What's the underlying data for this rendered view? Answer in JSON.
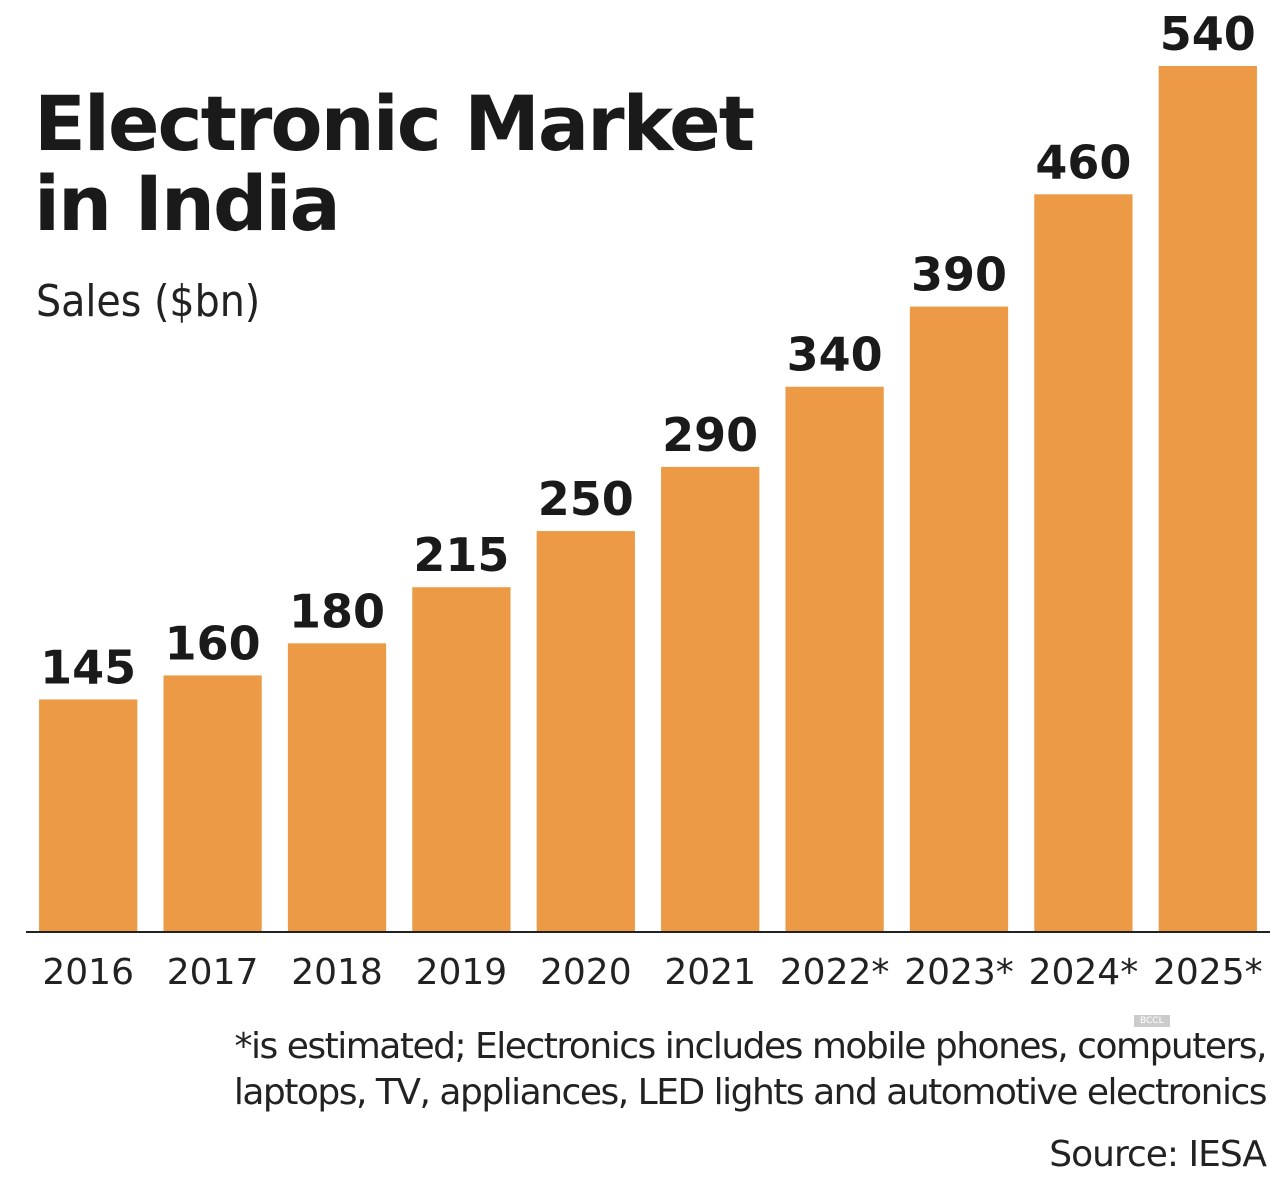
{
  "chart_data": {
    "type": "bar",
    "title": "Electronic Market in India",
    "subtitle": "Sales ($bn)",
    "categories": [
      "2016",
      "2017",
      "2018",
      "2019",
      "2020",
      "2021",
      "2022*",
      "2023*",
      "2024*",
      "2025*"
    ],
    "values": [
      145,
      160,
      180,
      215,
      250,
      290,
      340,
      390,
      460,
      540
    ],
    "color": "#ec9a45",
    "ylim": [
      0,
      540
    ],
    "note": "*is estimated; Electronics includes mobile phones, computers, laptops, TV, appliances, LED lights and automotive electronics",
    "source": "Source: IESA",
    "watermark": "BCCL"
  }
}
